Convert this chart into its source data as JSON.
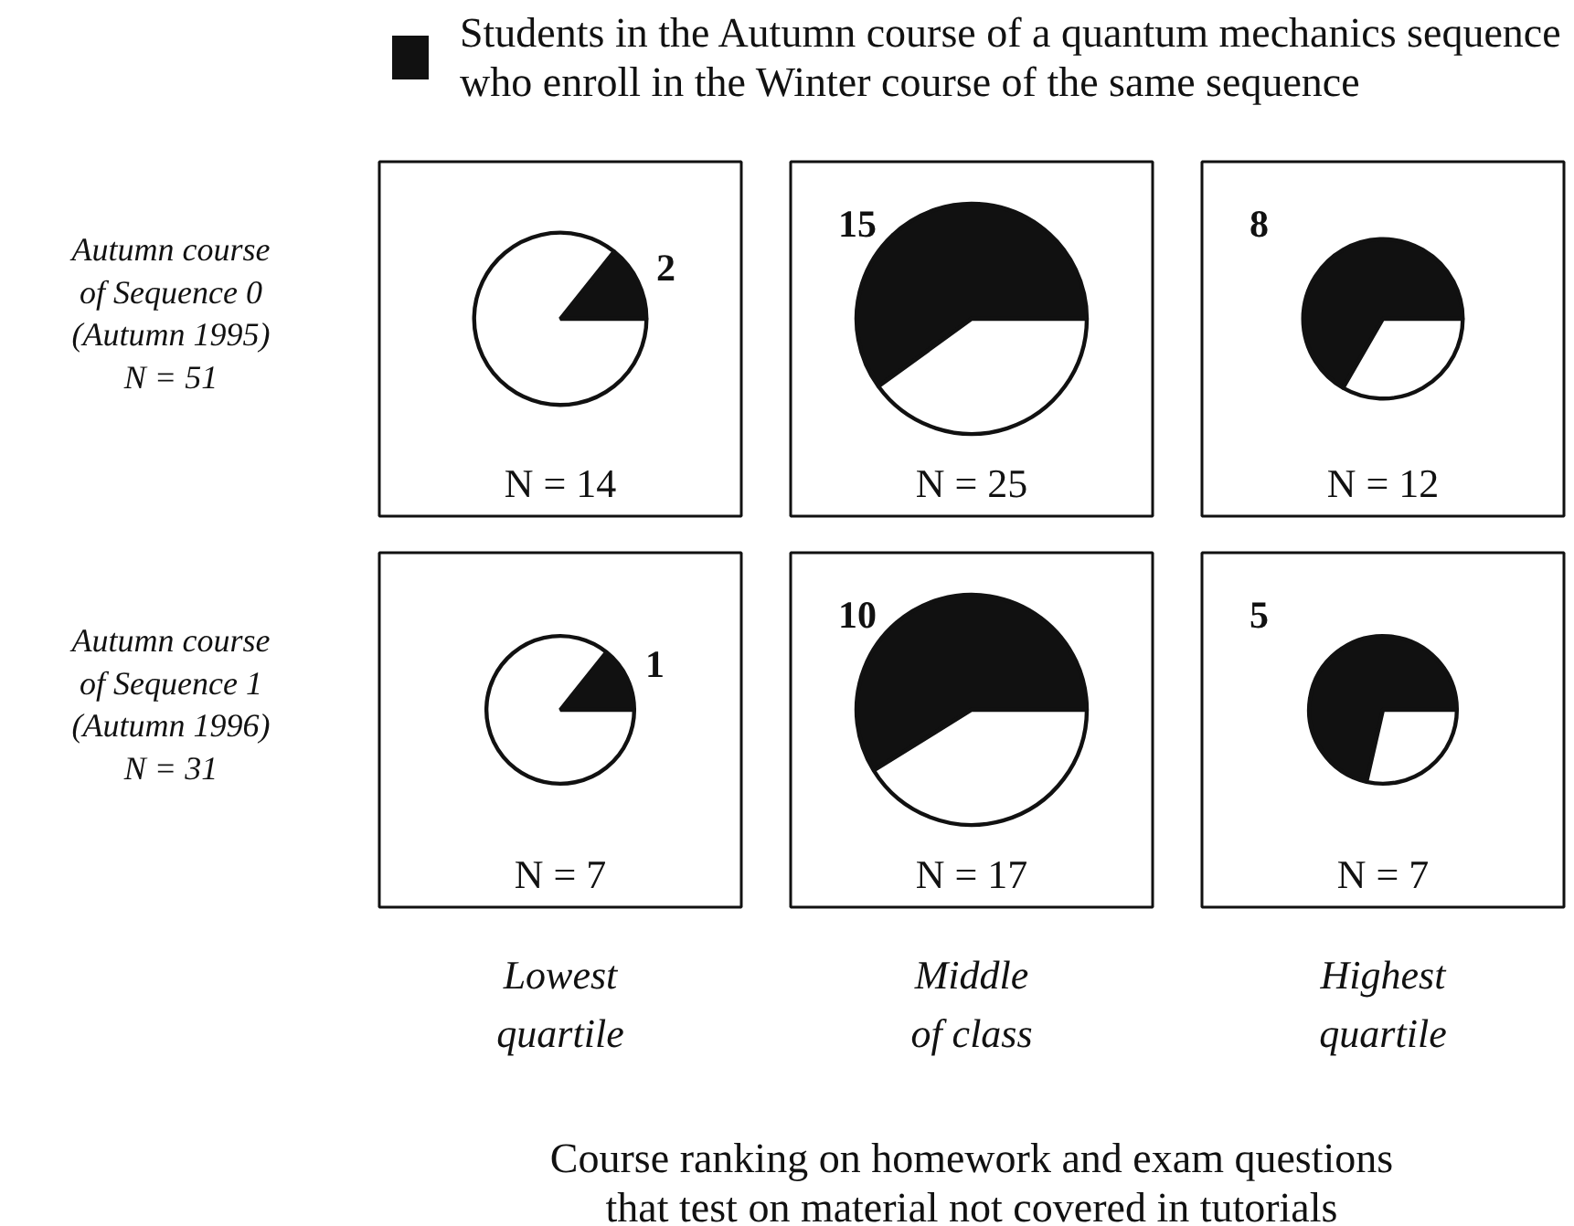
{
  "chart_data": [
    {
      "type": "pie",
      "categories": [
        "Students in the Autumn course of a quantum mechanics sequence\nwho enroll in the Winter course of the same sequence",
        null
      ],
      "values": [
        2,
        12
      ],
      "colors": [
        "#111111",
        "#ffffff"
      ],
      "value_labels": [
        "2",
        null
      ],
      "legend": "top",
      "ylabel": "Autumn course\nof Sequence 0\n(Autumn 1995)\nN = 51",
      "annotations": [
        "N = 14"
      ]
    },
    {
      "type": "pie",
      "categories": [
        null,
        null
      ],
      "values": [
        15,
        10
      ],
      "colors": [
        "#111111",
        "#ffffff"
      ],
      "value_labels": [
        "15",
        null
      ],
      "annotations": [
        "N = 25"
      ]
    },
    {
      "type": "pie",
      "categories": [
        null,
        null
      ],
      "values": [
        8,
        4
      ],
      "colors": [
        "#111111",
        "#ffffff"
      ],
      "value_labels": [
        "8",
        null
      ],
      "annotations": [
        "N = 12"
      ]
    },
    {
      "type": "pie",
      "categories": [
        null,
        null
      ],
      "values": [
        1,
        6
      ],
      "colors": [
        "#111111",
        "#ffffff"
      ],
      "value_labels": [
        "1",
        null
      ],
      "ylabel": "Autumn course\nof Sequence 1\n(Autumn 1996)\nN = 31",
      "xlabel": "Lowest\nquartile",
      "annotations": [
        "N = 7"
      ]
    },
    {
      "type": "pie",
      "categories": [
        null,
        null
      ],
      "values": [
        10,
        7
      ],
      "colors": [
        "#111111",
        "#ffffff"
      ],
      "value_labels": [
        "10",
        null
      ],
      "xlabel": "Middle\nof class",
      "annotations": [
        "N = 17",
        "Course ranking on homework and exam questions\nthat test on material not covered in tutorials"
      ]
    },
    {
      "type": "pie",
      "categories": [
        null,
        null
      ],
      "values": [
        5,
        2
      ],
      "colors": [
        "#111111",
        "#ffffff"
      ],
      "value_labels": [
        "5",
        null
      ],
      "xlabel": "Highest\nquartile",
      "annotations": [
        "N = 7"
      ]
    }
  ]
}
